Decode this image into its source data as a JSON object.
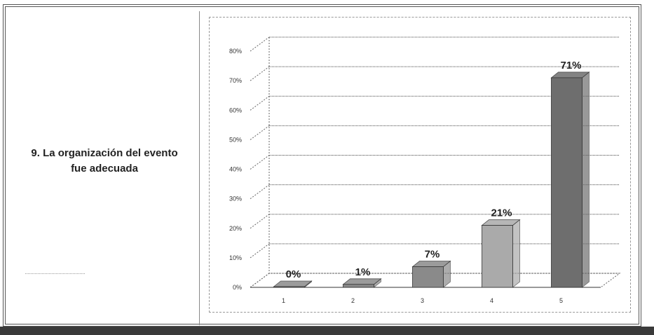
{
  "question": {
    "line1": "9. La organización del evento",
    "line2": "fue adecuada"
  },
  "chart_data": {
    "type": "bar",
    "categories": [
      "1",
      "2",
      "3",
      "4",
      "5"
    ],
    "values": [
      0,
      1,
      7,
      21,
      71
    ],
    "value_labels": [
      "0%",
      "1%",
      "7%",
      "21%",
      "71%"
    ],
    "yticks": [
      "0%",
      "10%",
      "20%",
      "30%",
      "40%",
      "50%",
      "60%",
      "70%",
      "80%"
    ],
    "ylim": [
      0,
      80
    ],
    "grid": true,
    "legend": "none",
    "bar_colors": [
      "#8a8a8a",
      "#8a8a8a",
      "#8a8a8a",
      "#aaaaaa",
      "#6e6e6e"
    ]
  }
}
